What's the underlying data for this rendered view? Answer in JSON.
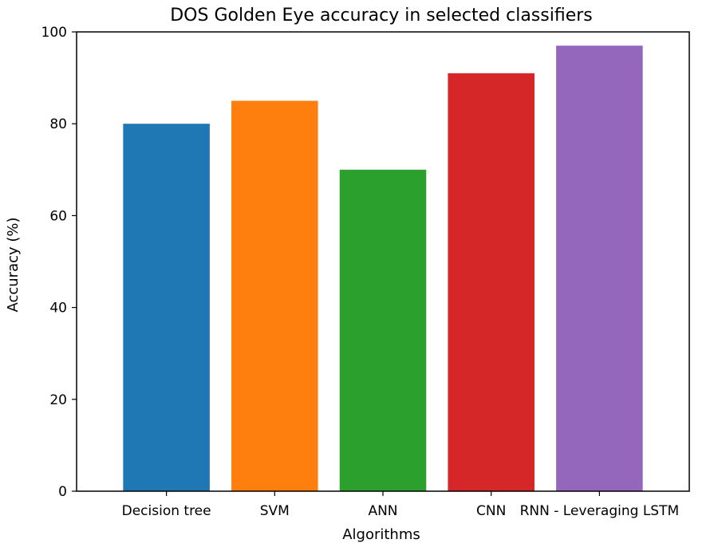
{
  "chart_data": {
    "type": "bar",
    "title": "DOS Golden Eye accuracy in selected classifiers",
    "xlabel": "Algorithms",
    "ylabel": "Accuracy (%)",
    "categories": [
      "Decision tree",
      "SVM",
      "ANN",
      "CNN",
      "RNN - Leveraging LSTM"
    ],
    "values": [
      80,
      85,
      70,
      91,
      97
    ],
    "colors": [
      "#1f77b4",
      "#ff7f0e",
      "#2ca02c",
      "#d62728",
      "#9467bd"
    ],
    "ylim": [
      0,
      100
    ],
    "yticks": [
      "0",
      "20",
      "40",
      "60",
      "80",
      "100"
    ],
    "grid": false,
    "legend": "none"
  }
}
